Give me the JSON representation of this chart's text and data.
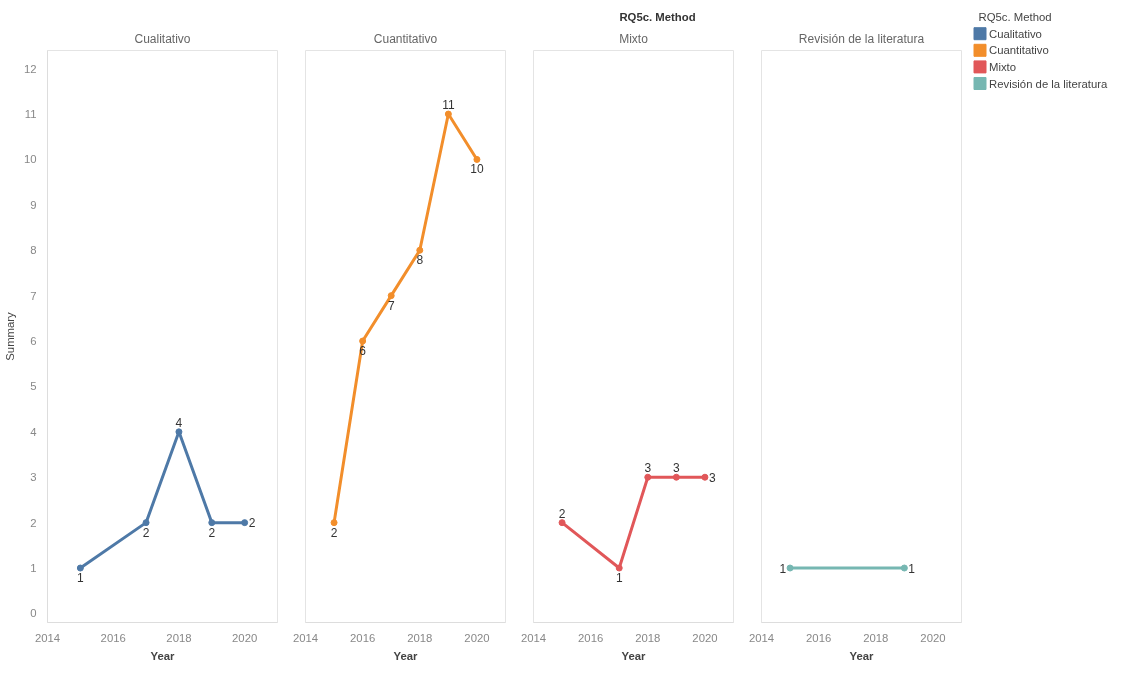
{
  "chart_data": [
    {
      "type": "line",
      "title": "Cualitativo",
      "annotations": [
        "RQ5c. Method"
      ],
      "legend_title": "RQ5c. Method",
      "legend": "right",
      "xlabel": "Year",
      "ylabel": "Summary",
      "xlim": [
        2014,
        2021
      ],
      "xticks": [
        2014,
        2016,
        2018,
        2020
      ],
      "ylim": [
        -0.2,
        12.4
      ],
      "yticks": [
        0,
        1,
        2,
        3,
        4,
        5,
        6,
        7,
        8,
        9,
        10,
        11,
        12
      ],
      "marker": "circle",
      "data_labels": true,
      "series": [
        {
          "name": "Cualitativo",
          "color": "#4e79a7",
          "x": [
            2015,
            2017,
            2018,
            2019,
            2020
          ],
          "values": [
            1,
            2,
            4,
            2,
            2
          ]
        }
      ]
    },
    {
      "type": "line",
      "title": "Cuantitativo",
      "legend": "right",
      "xlabel": "Year",
      "xlim": [
        2014,
        2021
      ],
      "xticks": [
        2014,
        2016,
        2018,
        2020
      ],
      "ylim": [
        -0.2,
        12.4
      ],
      "yticks": [
        0,
        1,
        2,
        3,
        4,
        5,
        6,
        7,
        8,
        9,
        10,
        11,
        12
      ],
      "tick_labels": "x",
      "marker": "circle",
      "data_labels": true,
      "series": [
        {
          "name": "Cuantitativo",
          "color": "#f28e2b",
          "x": [
            2015,
            2016,
            2017,
            2018,
            2019,
            2020
          ],
          "values": [
            2,
            6,
            7,
            8,
            11,
            10
          ]
        }
      ]
    },
    {
      "type": "line",
      "title": "Mixto",
      "legend": "right",
      "xlabel": "Year",
      "xlim": [
        2014,
        2021
      ],
      "xticks": [
        2014,
        2016,
        2018,
        2020
      ],
      "ylim": [
        -0.2,
        12.4
      ],
      "yticks": [
        0,
        1,
        2,
        3,
        4,
        5,
        6,
        7,
        8,
        9,
        10,
        11,
        12
      ],
      "tick_labels": "x",
      "marker": "circle",
      "data_labels": true,
      "series": [
        {
          "name": "Mixto",
          "color": "#e15759",
          "x": [
            2015,
            2017,
            2018,
            2019,
            2020
          ],
          "values": [
            2,
            1,
            3,
            3,
            3
          ]
        }
      ]
    },
    {
      "type": "line",
      "title": "Revisión de la literatura",
      "legend": "right",
      "xlabel": "Year",
      "xlim": [
        2014,
        2021
      ],
      "xticks": [
        2014,
        2016,
        2018,
        2020
      ],
      "ylim": [
        -0.2,
        12.4
      ],
      "yticks": [
        0,
        1,
        2,
        3,
        4,
        5,
        6,
        7,
        8,
        9,
        10,
        11,
        12
      ],
      "tick_labels": "x",
      "marker": "circle",
      "data_labels": true,
      "series": [
        {
          "name": "Revisión de la literatura",
          "color": "#76b7b2",
          "x": [
            2015,
            2019
          ],
          "values": [
            1,
            1
          ]
        }
      ]
    }
  ]
}
